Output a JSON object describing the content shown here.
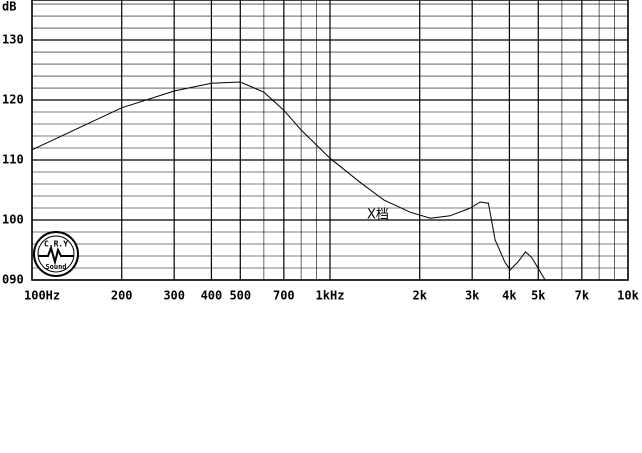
{
  "chart_data": {
    "type": "line",
    "ylabel": "dB",
    "annotation": "X档",
    "logo": {
      "top": "C.R.Y",
      "bottom": "Sound"
    },
    "xscale": "log",
    "grid": true,
    "xlim": [
      100,
      10000
    ],
    "ylim": [
      90,
      136.67
    ],
    "xticks": [
      {
        "value": 100,
        "label": "100Hz"
      },
      200,
      300,
      400,
      500,
      700,
      {
        "value": 1000,
        "label": "1kHz"
      },
      {
        "value": 2000,
        "label": "2k"
      },
      {
        "value": 3000,
        "label": "3k"
      },
      {
        "value": 4000,
        "label": "4k"
      },
      {
        "value": 5000,
        "label": "5k"
      },
      {
        "value": 7000,
        "label": "7k"
      },
      {
        "value": 10000,
        "label": "10k"
      }
    ],
    "yticks": [
      {
        "value": 90,
        "label": "090"
      },
      100,
      110,
      120,
      130
    ],
    "minor_xgrid": [
      600,
      800,
      900,
      6000,
      8000,
      9000
    ],
    "minor_ygrid": [
      92,
      94,
      96,
      98,
      102,
      104,
      106,
      108,
      112,
      114,
      116,
      118,
      122,
      124,
      126,
      128,
      132,
      134,
      136
    ],
    "series": [
      {
        "color": "#000000",
        "x": [
          100,
          200,
          300,
          400,
          500,
          600,
          700,
          800,
          1000,
          1260,
          1520,
          1860,
          2170,
          2530,
          2960,
          3190,
          3400,
          3580,
          3860,
          4020,
          4270,
          4530,
          4760,
          4990,
          5270
        ],
        "values": [
          111.7,
          118.7,
          121.5,
          122.8,
          123,
          121.3,
          118.3,
          115,
          110.3,
          106.3,
          103.3,
          101.3,
          100.3,
          100.7,
          102,
          103,
          102.8,
          96.7,
          93,
          91.7,
          93,
          94.7,
          93.7,
          92,
          90
        ]
      }
    ]
  }
}
